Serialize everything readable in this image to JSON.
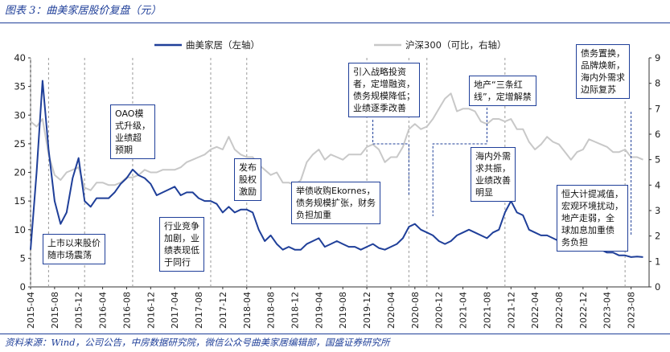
{
  "figure": {
    "title": "图表 3：曲美家居股价复盘（元）",
    "source": "资料来源：Wind，公司公告，中房数据研究院，微信公众号曲美家居编辑部，国盛证券研究所"
  },
  "colors": {
    "stock": "#1f3f99",
    "index": "#c8c8c8",
    "dashed": "#9a9a9a",
    "annotation_border": "#1f3f99",
    "accent": "#1f3f99"
  },
  "chart_data": {
    "type": "line",
    "title": "曲美家居股价复盘（元）",
    "xlabel": "",
    "ylabel": "",
    "x_ticks": [
      "2015-04",
      "2015-08",
      "2015-12",
      "2016-04",
      "2016-08",
      "2016-12",
      "2017-04",
      "2017-08",
      "2017-12",
      "2018-04",
      "2018-08",
      "2018-12",
      "2019-04",
      "2019-08",
      "2019-12",
      "2020-04",
      "2020-08",
      "2020-12",
      "2021-04",
      "2021-08",
      "2021-12",
      "2022-04",
      "2022-08",
      "2022-12",
      "2023-04",
      "2023-08"
    ],
    "y_left": {
      "range": [
        0,
        40
      ],
      "ticks": [
        "0",
        "5",
        "10",
        "15",
        "20",
        "25",
        "30",
        "35",
        "40"
      ]
    },
    "y_right": {
      "range": [
        0,
        9
      ],
      "ticks": [
        "0",
        "1",
        "2",
        "3",
        "4",
        "5",
        "6",
        "7",
        "8",
        "9"
      ]
    },
    "grid": false,
    "legend_position": "top",
    "series": [
      {
        "name": "曲美家居（左轴）",
        "axis": "left",
        "points": [
          [
            "2015-04",
            6.5
          ],
          [
            "2015-05",
            20
          ],
          [
            "2015-06",
            36
          ],
          [
            "2015-07",
            24
          ],
          [
            "2015-08",
            15
          ],
          [
            "2015-09",
            11
          ],
          [
            "2015-10",
            13
          ],
          [
            "2015-11",
            19
          ],
          [
            "2015-12",
            22.5
          ],
          [
            "2016-01",
            15
          ],
          [
            "2016-02",
            14
          ],
          [
            "2016-03",
            15.5
          ],
          [
            "2016-04",
            15.5
          ],
          [
            "2016-05",
            15.5
          ],
          [
            "2016-06",
            16.5
          ],
          [
            "2016-07",
            18
          ],
          [
            "2016-08",
            19
          ],
          [
            "2016-09",
            20.5
          ],
          [
            "2016-10",
            19.5
          ],
          [
            "2016-11",
            19
          ],
          [
            "2016-12",
            18
          ],
          [
            "2017-01",
            16
          ],
          [
            "2017-02",
            16.5
          ],
          [
            "2017-03",
            17
          ],
          [
            "2017-04",
            17.5
          ],
          [
            "2017-05",
            16
          ],
          [
            "2017-06",
            16.5
          ],
          [
            "2017-07",
            16.5
          ],
          [
            "2017-08",
            15.5
          ],
          [
            "2017-09",
            15
          ],
          [
            "2017-10",
            15
          ],
          [
            "2017-11",
            14.5
          ],
          [
            "2017-12",
            13
          ],
          [
            "2018-01",
            14
          ],
          [
            "2018-02",
            13
          ],
          [
            "2018-03",
            13.5
          ],
          [
            "2018-04",
            13.5
          ],
          [
            "2018-05",
            13
          ],
          [
            "2018-06",
            10
          ],
          [
            "2018-07",
            8
          ],
          [
            "2018-08",
            9
          ],
          [
            "2018-09",
            7.5
          ],
          [
            "2018-10",
            6.5
          ],
          [
            "2018-11",
            7
          ],
          [
            "2018-12",
            6.5
          ],
          [
            "2019-01",
            6.5
          ],
          [
            "2019-02",
            7.5
          ],
          [
            "2019-03",
            8
          ],
          [
            "2019-04",
            8.5
          ],
          [
            "2019-05",
            7
          ],
          [
            "2019-06",
            7.5
          ],
          [
            "2019-07",
            8
          ],
          [
            "2019-08",
            7.5
          ],
          [
            "2019-09",
            7
          ],
          [
            "2019-10",
            7
          ],
          [
            "2019-11",
            6.5
          ],
          [
            "2019-12",
            7
          ],
          [
            "2020-01",
            7.5
          ],
          [
            "2020-02",
            6.8
          ],
          [
            "2020-03",
            6.5
          ],
          [
            "2020-04",
            7
          ],
          [
            "2020-05",
            7.5
          ],
          [
            "2020-06",
            8.5
          ],
          [
            "2020-07",
            10.5
          ],
          [
            "2020-08",
            11
          ],
          [
            "2020-09",
            10
          ],
          [
            "2020-10",
            9.5
          ],
          [
            "2020-11",
            9
          ],
          [
            "2020-12",
            8
          ],
          [
            "2021-01",
            7.5
          ],
          [
            "2021-02",
            8
          ],
          [
            "2021-03",
            9
          ],
          [
            "2021-04",
            9.5
          ],
          [
            "2021-05",
            10
          ],
          [
            "2021-06",
            9.5
          ],
          [
            "2021-07",
            9
          ],
          [
            "2021-08",
            8.5
          ],
          [
            "2021-09",
            9.5
          ],
          [
            "2021-10",
            10
          ],
          [
            "2021-11",
            13
          ],
          [
            "2021-12",
            15
          ],
          [
            "2022-01",
            13
          ],
          [
            "2022-02",
            12.5
          ],
          [
            "2022-03",
            10
          ],
          [
            "2022-04",
            9.5
          ],
          [
            "2022-05",
            9
          ],
          [
            "2022-06",
            9
          ],
          [
            "2022-07",
            8.5
          ],
          [
            "2022-08",
            8
          ],
          [
            "2022-09",
            7.5
          ],
          [
            "2022-10",
            7
          ],
          [
            "2022-11",
            7.5
          ],
          [
            "2022-12",
            7.5
          ],
          [
            "2023-01",
            7
          ],
          [
            "2023-02",
            6.8
          ],
          [
            "2023-03",
            6.5
          ],
          [
            "2023-04",
            6
          ],
          [
            "2023-05",
            6
          ],
          [
            "2023-06",
            5.5
          ],
          [
            "2023-07",
            5.5
          ],
          [
            "2023-08",
            5.2
          ],
          [
            "2023-09",
            5.3
          ],
          [
            "2023-10",
            5.2
          ]
        ]
      },
      {
        "name": "沪深300（可比，右轴）",
        "axis": "right",
        "points": [
          [
            "2015-04",
            6.5
          ],
          [
            "2015-05",
            6.3
          ],
          [
            "2015-06",
            6.6
          ],
          [
            "2015-07",
            5.2
          ],
          [
            "2015-08",
            4.4
          ],
          [
            "2015-09",
            4.2
          ],
          [
            "2015-10",
            4.5
          ],
          [
            "2015-11",
            4.6
          ],
          [
            "2015-12",
            4.7
          ],
          [
            "2016-01",
            3.9
          ],
          [
            "2016-02",
            3.8
          ],
          [
            "2016-03",
            4.1
          ],
          [
            "2016-04",
            4.1
          ],
          [
            "2016-05",
            4.0
          ],
          [
            "2016-06",
            4.0
          ],
          [
            "2016-07",
            4.1
          ],
          [
            "2016-08",
            4.3
          ],
          [
            "2016-09",
            4.3
          ],
          [
            "2016-10",
            4.4
          ],
          [
            "2016-11",
            4.6
          ],
          [
            "2016-12",
            4.5
          ],
          [
            "2017-01",
            4.5
          ],
          [
            "2017-02",
            4.6
          ],
          [
            "2017-03",
            4.6
          ],
          [
            "2017-04",
            4.6
          ],
          [
            "2017-05",
            4.7
          ],
          [
            "2017-06",
            4.9
          ],
          [
            "2017-07",
            5.0
          ],
          [
            "2017-08",
            5.1
          ],
          [
            "2017-09",
            5.2
          ],
          [
            "2017-10",
            5.4
          ],
          [
            "2017-11",
            5.5
          ],
          [
            "2017-12",
            5.4
          ],
          [
            "2018-01",
            5.9
          ],
          [
            "2018-02",
            5.4
          ],
          [
            "2018-03",
            5.2
          ],
          [
            "2018-04",
            5.1
          ],
          [
            "2018-05",
            5.1
          ],
          [
            "2018-06",
            4.8
          ],
          [
            "2018-07",
            4.6
          ],
          [
            "2018-08",
            4.4
          ],
          [
            "2018-09",
            4.5
          ],
          [
            "2018-10",
            4.1
          ],
          [
            "2018-11",
            4.1
          ],
          [
            "2018-12",
            4.0
          ],
          [
            "2019-01",
            4.2
          ],
          [
            "2019-02",
            4.9
          ],
          [
            "2019-03",
            5.2
          ],
          [
            "2019-04",
            5.4
          ],
          [
            "2019-05",
            5.0
          ],
          [
            "2019-06",
            5.2
          ],
          [
            "2019-07",
            5.1
          ],
          [
            "2019-08",
            5.0
          ],
          [
            "2019-09",
            5.2
          ],
          [
            "2019-10",
            5.2
          ],
          [
            "2019-11",
            5.2
          ],
          [
            "2019-12",
            5.5
          ],
          [
            "2020-01",
            5.6
          ],
          [
            "2020-02",
            5.4
          ],
          [
            "2020-03",
            4.9
          ],
          [
            "2020-04",
            5.1
          ],
          [
            "2020-05",
            5.1
          ],
          [
            "2020-06",
            5.5
          ],
          [
            "2020-07",
            6.2
          ],
          [
            "2020-08",
            6.4
          ],
          [
            "2020-09",
            6.2
          ],
          [
            "2020-10",
            6.3
          ],
          [
            "2020-11",
            6.6
          ],
          [
            "2020-12",
            7.0
          ],
          [
            "2021-01",
            7.4
          ],
          [
            "2021-02",
            7.6
          ],
          [
            "2021-03",
            6.9
          ],
          [
            "2021-04",
            7.0
          ],
          [
            "2021-05",
            7.0
          ],
          [
            "2021-06",
            6.9
          ],
          [
            "2021-07",
            6.5
          ],
          [
            "2021-08",
            6.4
          ],
          [
            "2021-09",
            6.6
          ],
          [
            "2021-10",
            6.6
          ],
          [
            "2021-11",
            6.5
          ],
          [
            "2021-12",
            6.6
          ],
          [
            "2022-01",
            6.2
          ],
          [
            "2022-02",
            6.2
          ],
          [
            "2022-03",
            5.7
          ],
          [
            "2022-04",
            5.4
          ],
          [
            "2022-05",
            5.6
          ],
          [
            "2022-06",
            5.9
          ],
          [
            "2022-07",
            5.7
          ],
          [
            "2022-08",
            5.6
          ],
          [
            "2022-09",
            5.3
          ],
          [
            "2022-10",
            5.0
          ],
          [
            "2022-11",
            5.3
          ],
          [
            "2022-12",
            5.4
          ],
          [
            "2023-01",
            5.8
          ],
          [
            "2023-02",
            5.7
          ],
          [
            "2023-03",
            5.6
          ],
          [
            "2023-04",
            5.5
          ],
          [
            "2023-05",
            5.3
          ],
          [
            "2023-06",
            5.3
          ],
          [
            "2023-07",
            5.4
          ],
          [
            "2023-08",
            5.1
          ],
          [
            "2023-09",
            5.1
          ],
          [
            "2023-10",
            5.0
          ]
        ]
      }
    ],
    "event_lines": [
      "2015-04",
      "2015-07",
      "2016-01",
      "2016-09",
      "2017-10",
      "2018-04",
      "2019-12",
      "2020-07",
      "2020-10",
      "2021-11",
      "2023-07"
    ],
    "annotations": [
      {
        "id": "ann-listing",
        "text": "上市以来股价\n随市场震荡",
        "date": "2015-07",
        "value": 14
      },
      {
        "id": "ann-oao",
        "text": "OAO模\n式升级，\n业绩超\n预期",
        "date": "2016-09",
        "value": 21
      },
      {
        "id": "ann-competition",
        "text": "行业竞争\n加剧，业\n绩表现低\n于同行",
        "date": "2017-06",
        "value": 14
      },
      {
        "id": "ann-equity",
        "text": "发布\n股权\n激励",
        "date": "2017-12",
        "value": 18
      },
      {
        "id": "ann-ekornes",
        "text": "举债收购Ekornes，\n债务规模扩张，财务\n负担加重",
        "date": "2018-08",
        "value": 10
      },
      {
        "id": "ann-strategy",
        "text": "引入战略投资\n者，定增融资，\n债务规模降低；\n业绩逐季改善",
        "date": "2020-07",
        "value": 11
      },
      {
        "id": "ann-redlines",
        "text": "地产“三条红\n线”，定增解禁",
        "date": "2021-03",
        "value": 9
      },
      {
        "id": "ann-overseas",
        "text": "海内外需\n求共振，\n业绩改善\n明显",
        "date": "2021-11",
        "value": 15
      },
      {
        "id": "ann-debt-swap",
        "text": "债务置换，\n品牌焕新，\n海内外需求\n边际复苏",
        "date": "2023-07",
        "value": 5.3
      },
      {
        "id": "ann-deleverage",
        "text": "恒大计提减值，\n宏观环境扰动，\n地产走弱，全\n球加息加重债\n务负担",
        "date": "2022-04",
        "value": 9
      }
    ]
  }
}
